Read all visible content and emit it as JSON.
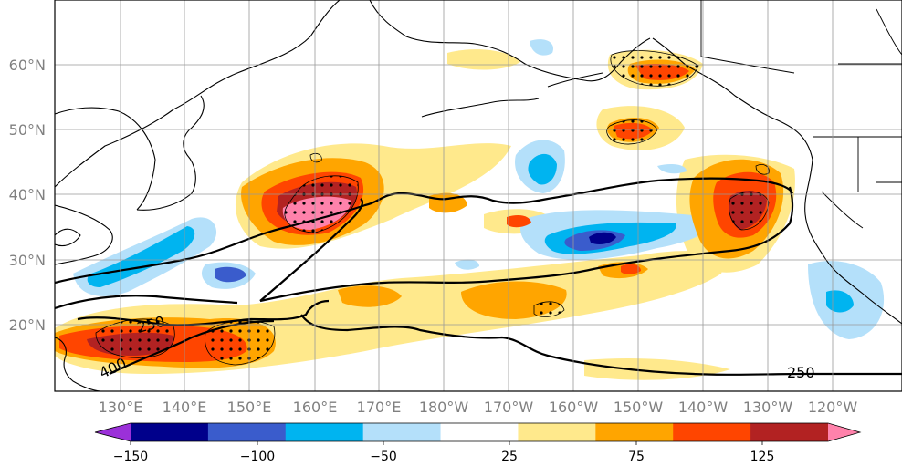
{
  "map": {
    "lat_labels": [
      "60°N",
      "50°N",
      "40°N",
      "30°N",
      "20°N"
    ],
    "lon_labels": [
      "130°E",
      "140°E",
      "150°E",
      "160°E",
      "170°E",
      "180°W",
      "170°W",
      "160°W",
      "150°W",
      "140°W",
      "130°W",
      "120°W"
    ],
    "contour_labels": [
      "250",
      "250",
      "400"
    ]
  },
  "colorbar": {
    "tick_labels": [
      "−150",
      "−100",
      "−50",
      "25",
      "75",
      "125"
    ],
    "colors": [
      "#9b30d9",
      "#00008b",
      "#3a5ccc",
      "#00b4f0",
      "#b4e0fa",
      "#ffffff",
      "#ffe98c",
      "#ffa500",
      "#ff4500",
      "#b22222",
      "#ff82ab"
    ]
  }
}
